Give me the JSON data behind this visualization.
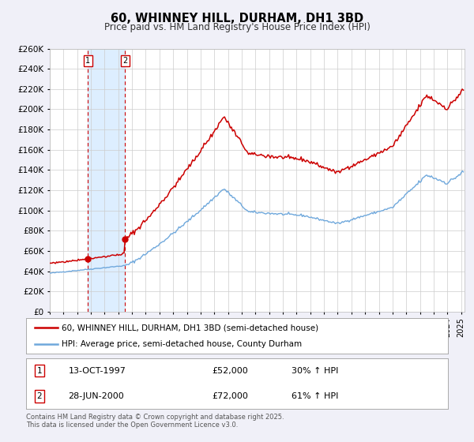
{
  "title": "60, WHINNEY HILL, DURHAM, DH1 3BD",
  "subtitle": "Price paid vs. HM Land Registry's House Price Index (HPI)",
  "legend_line1": "60, WHINNEY HILL, DURHAM, DH1 3BD (semi-detached house)",
  "legend_line2": "HPI: Average price, semi-detached house, County Durham",
  "transaction1_date": "13-OCT-1997",
  "transaction1_price": "£52,000",
  "transaction1_hpi": "30% ↑ HPI",
  "transaction1_year": 1997.79,
  "transaction2_date": "28-JUN-2000",
  "transaction2_price": "£72,000",
  "transaction2_hpi": "61% ↑ HPI",
  "transaction2_year": 2000.49,
  "hpi_line_color": "#6fa8dc",
  "price_line_color": "#cc0000",
  "dot_color": "#cc0000",
  "background_color": "#f0f0f8",
  "plot_bg_color": "#ffffff",
  "grid_color": "#cccccc",
  "vline_color": "#cc0000",
  "shade_color": "#ddeeff",
  "ylim": [
    0,
    260000
  ],
  "ytick_step": 20000,
  "xstart": 1995,
  "xend": 2025.25,
  "footnote": "Contains HM Land Registry data © Crown copyright and database right 2025.\nThis data is licensed under the Open Government Licence v3.0."
}
